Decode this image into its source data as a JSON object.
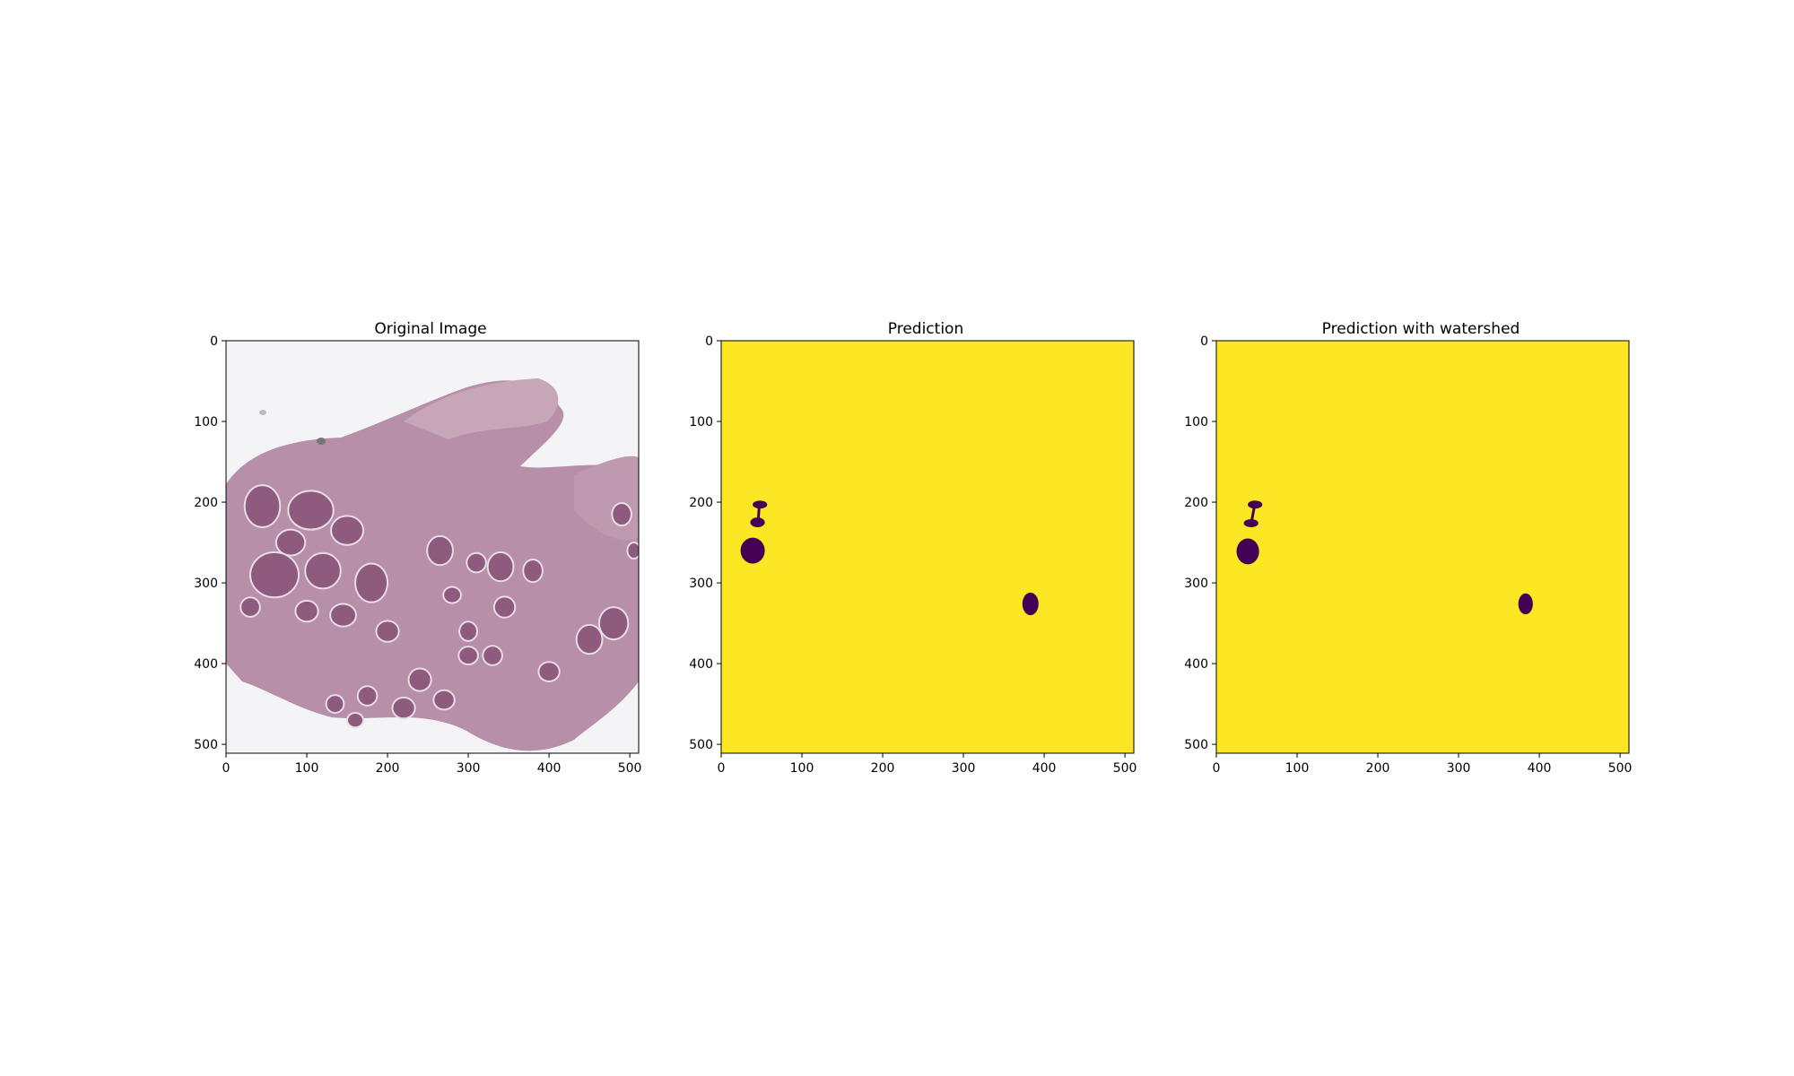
{
  "chart_data": [
    {
      "type": "image",
      "title": "Original Image",
      "image_description": "H&E stained histology section showing pink/purple tissue with many rounded nerve-fascicle-like bundles on a white background",
      "xlim": [
        0,
        511
      ],
      "ylim": [
        511,
        0
      ],
      "xticks": [
        0,
        100,
        200,
        300,
        400,
        500
      ],
      "yticks": [
        0,
        100,
        200,
        300,
        400,
        500
      ],
      "colors": {
        "background": "#f4f4f6",
        "tissue": "#b78fa8",
        "bundle": "#8e5a7d",
        "bundle_edge": "#e8dde6"
      }
    },
    {
      "type": "heatmap",
      "title": "Prediction",
      "colormap": "viridis",
      "xlim": [
        0,
        511
      ],
      "ylim": [
        511,
        0
      ],
      "xticks": [
        0,
        100,
        200,
        300,
        400,
        500
      ],
      "yticks": [
        0,
        100,
        200,
        300,
        400,
        500
      ],
      "background_value": 1,
      "colors": {
        "high": "#fde725",
        "low": "#440154"
      },
      "regions": [
        {
          "cx": 48,
          "cy": 203,
          "rx": 9,
          "ry": 5,
          "value": 0
        },
        {
          "cx": 45,
          "cy": 225,
          "rx": 9,
          "ry": 6,
          "value": 0
        },
        {
          "cx": 39,
          "cy": 260,
          "rx": 15,
          "ry": 16,
          "value": 0
        },
        {
          "cx": 383,
          "cy": 326,
          "rx": 10,
          "ry": 14,
          "value": 0
        }
      ]
    },
    {
      "type": "heatmap",
      "title": "Prediction with watershed",
      "colormap": "viridis",
      "xlim": [
        0,
        511
      ],
      "ylim": [
        511,
        0
      ],
      "xticks": [
        0,
        100,
        200,
        300,
        400,
        500
      ],
      "yticks": [
        0,
        100,
        200,
        300,
        400,
        500
      ],
      "background_value": 1,
      "colors": {
        "high": "#fde725",
        "low": "#440154"
      },
      "regions": [
        {
          "cx": 48,
          "cy": 203,
          "rx": 9,
          "ry": 5,
          "value": 0
        },
        {
          "cx": 43,
          "cy": 226,
          "rx": 9,
          "ry": 5,
          "value": 0
        },
        {
          "cx": 39,
          "cy": 261,
          "rx": 14,
          "ry": 16,
          "value": 0
        },
        {
          "cx": 383,
          "cy": 326,
          "rx": 9,
          "ry": 13,
          "value": 0
        }
      ]
    }
  ]
}
